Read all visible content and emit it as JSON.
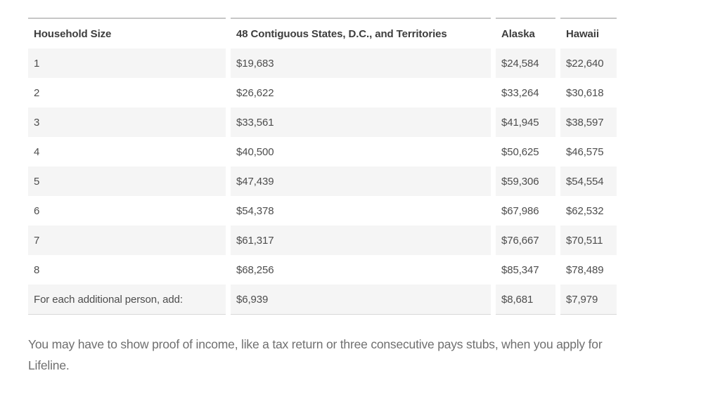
{
  "table": {
    "columns": [
      "Household Size",
      "48 Contiguous States, D.C., and Territories",
      "Alaska",
      "Hawaii"
    ],
    "rows": [
      [
        "1",
        "$19,683",
        "$24,584",
        "$22,640"
      ],
      [
        "2",
        "$26,622",
        "$33,264",
        "$30,618"
      ],
      [
        "3",
        "$33,561",
        "$41,945",
        "$38,597"
      ],
      [
        "4",
        "$40,500",
        "$50,625",
        "$46,575"
      ],
      [
        "5",
        "$47,439",
        "$59,306",
        "$54,554"
      ],
      [
        "6",
        "$54,378",
        "$67,986",
        "$62,532"
      ],
      [
        "7",
        "$61,317",
        "$76,667",
        "$70,511"
      ],
      [
        "8",
        "$68,256",
        "$85,347",
        "$78,489"
      ],
      [
        "For each additional person, add:",
        "$6,939",
        "$8,681",
        "$7,979"
      ]
    ]
  },
  "note": "You may have to show proof of income, like a tax return or three consecutive pays stubs, when you apply for Lifeline.",
  "colors": {
    "row_stripe": "#f5f5f5",
    "table_border_top": "#c6c6c6",
    "table_border_bottom": "#d8d8d8",
    "header_text": "#3d3d3d",
    "cell_text": "#4d4d4d",
    "note_text": "#6f6f6f",
    "page_background": "#ffffff"
  }
}
